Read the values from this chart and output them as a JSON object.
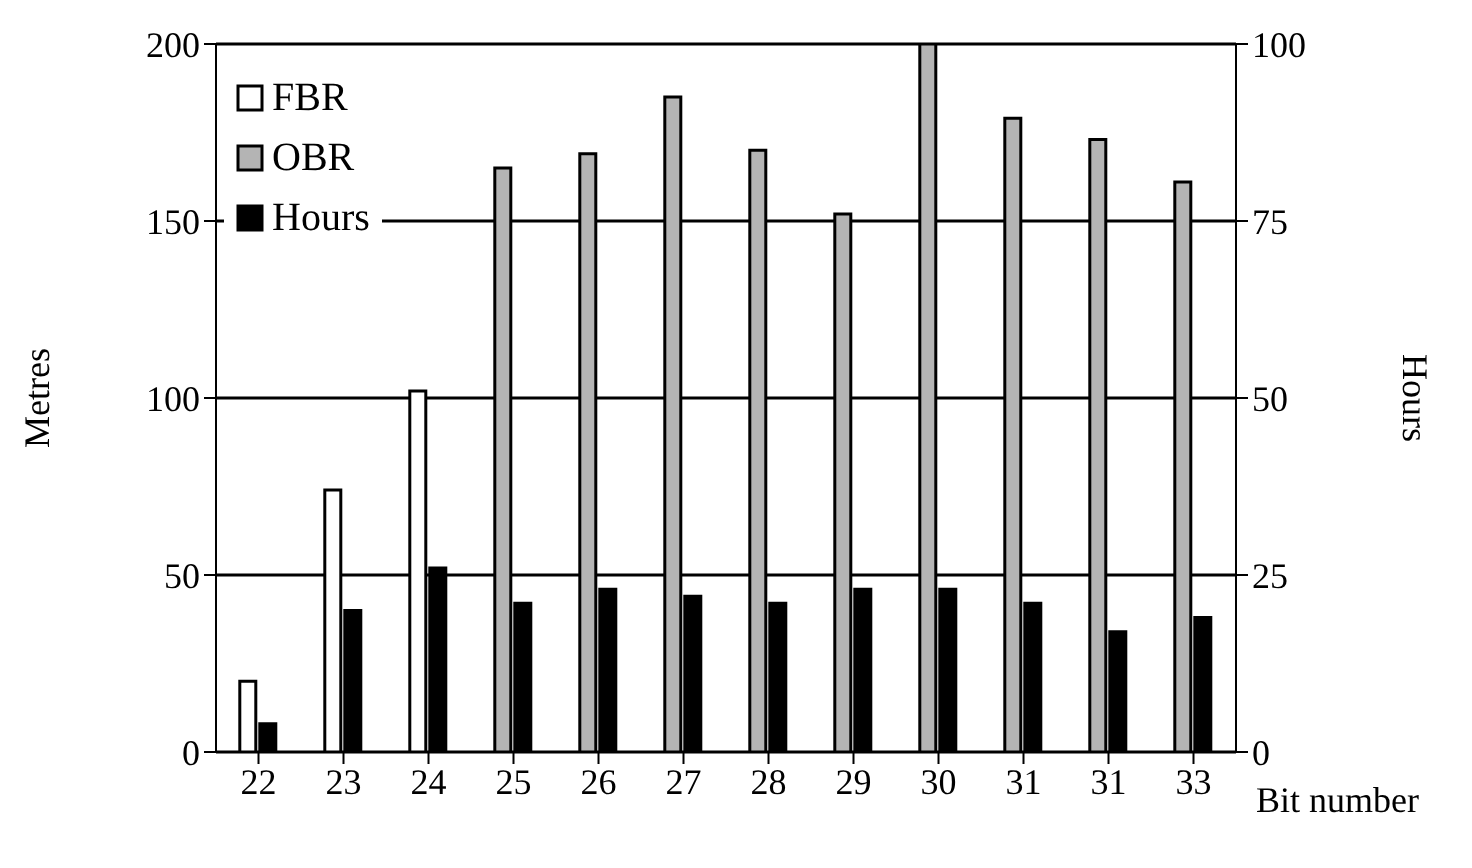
{
  "chart_data": {
    "type": "bar",
    "xlabel": "Bit number",
    "ylabel": "Metres",
    "y2label": "Hours",
    "categories": [
      "22",
      "23",
      "24",
      "25",
      "26",
      "27",
      "28",
      "29",
      "30",
      "31",
      "31",
      "33"
    ],
    "series": [
      {
        "name": "FBR",
        "color": "#ffffff",
        "values": [
          20,
          74,
          102,
          null,
          null,
          null,
          null,
          null,
          null,
          null,
          null,
          null
        ]
      },
      {
        "name": "OBR",
        "color": "#b4b4b4",
        "values": [
          null,
          null,
          null,
          165,
          169,
          185,
          170,
          152,
          200,
          179,
          173,
          161
        ]
      },
      {
        "name": "Hours",
        "color": "#000000",
        "axis": "y2",
        "values": [
          4,
          20,
          26,
          21,
          23,
          22,
          21,
          23,
          23,
          21,
          17,
          19
        ]
      }
    ],
    "ylim": [
      0,
      200
    ],
    "yticks": [
      0,
      50,
      100,
      150,
      200
    ],
    "y2lim": [
      0,
      100
    ],
    "y2ticks": [
      0,
      25,
      50,
      75,
      100
    ],
    "grid": "y",
    "legend": "top left"
  }
}
